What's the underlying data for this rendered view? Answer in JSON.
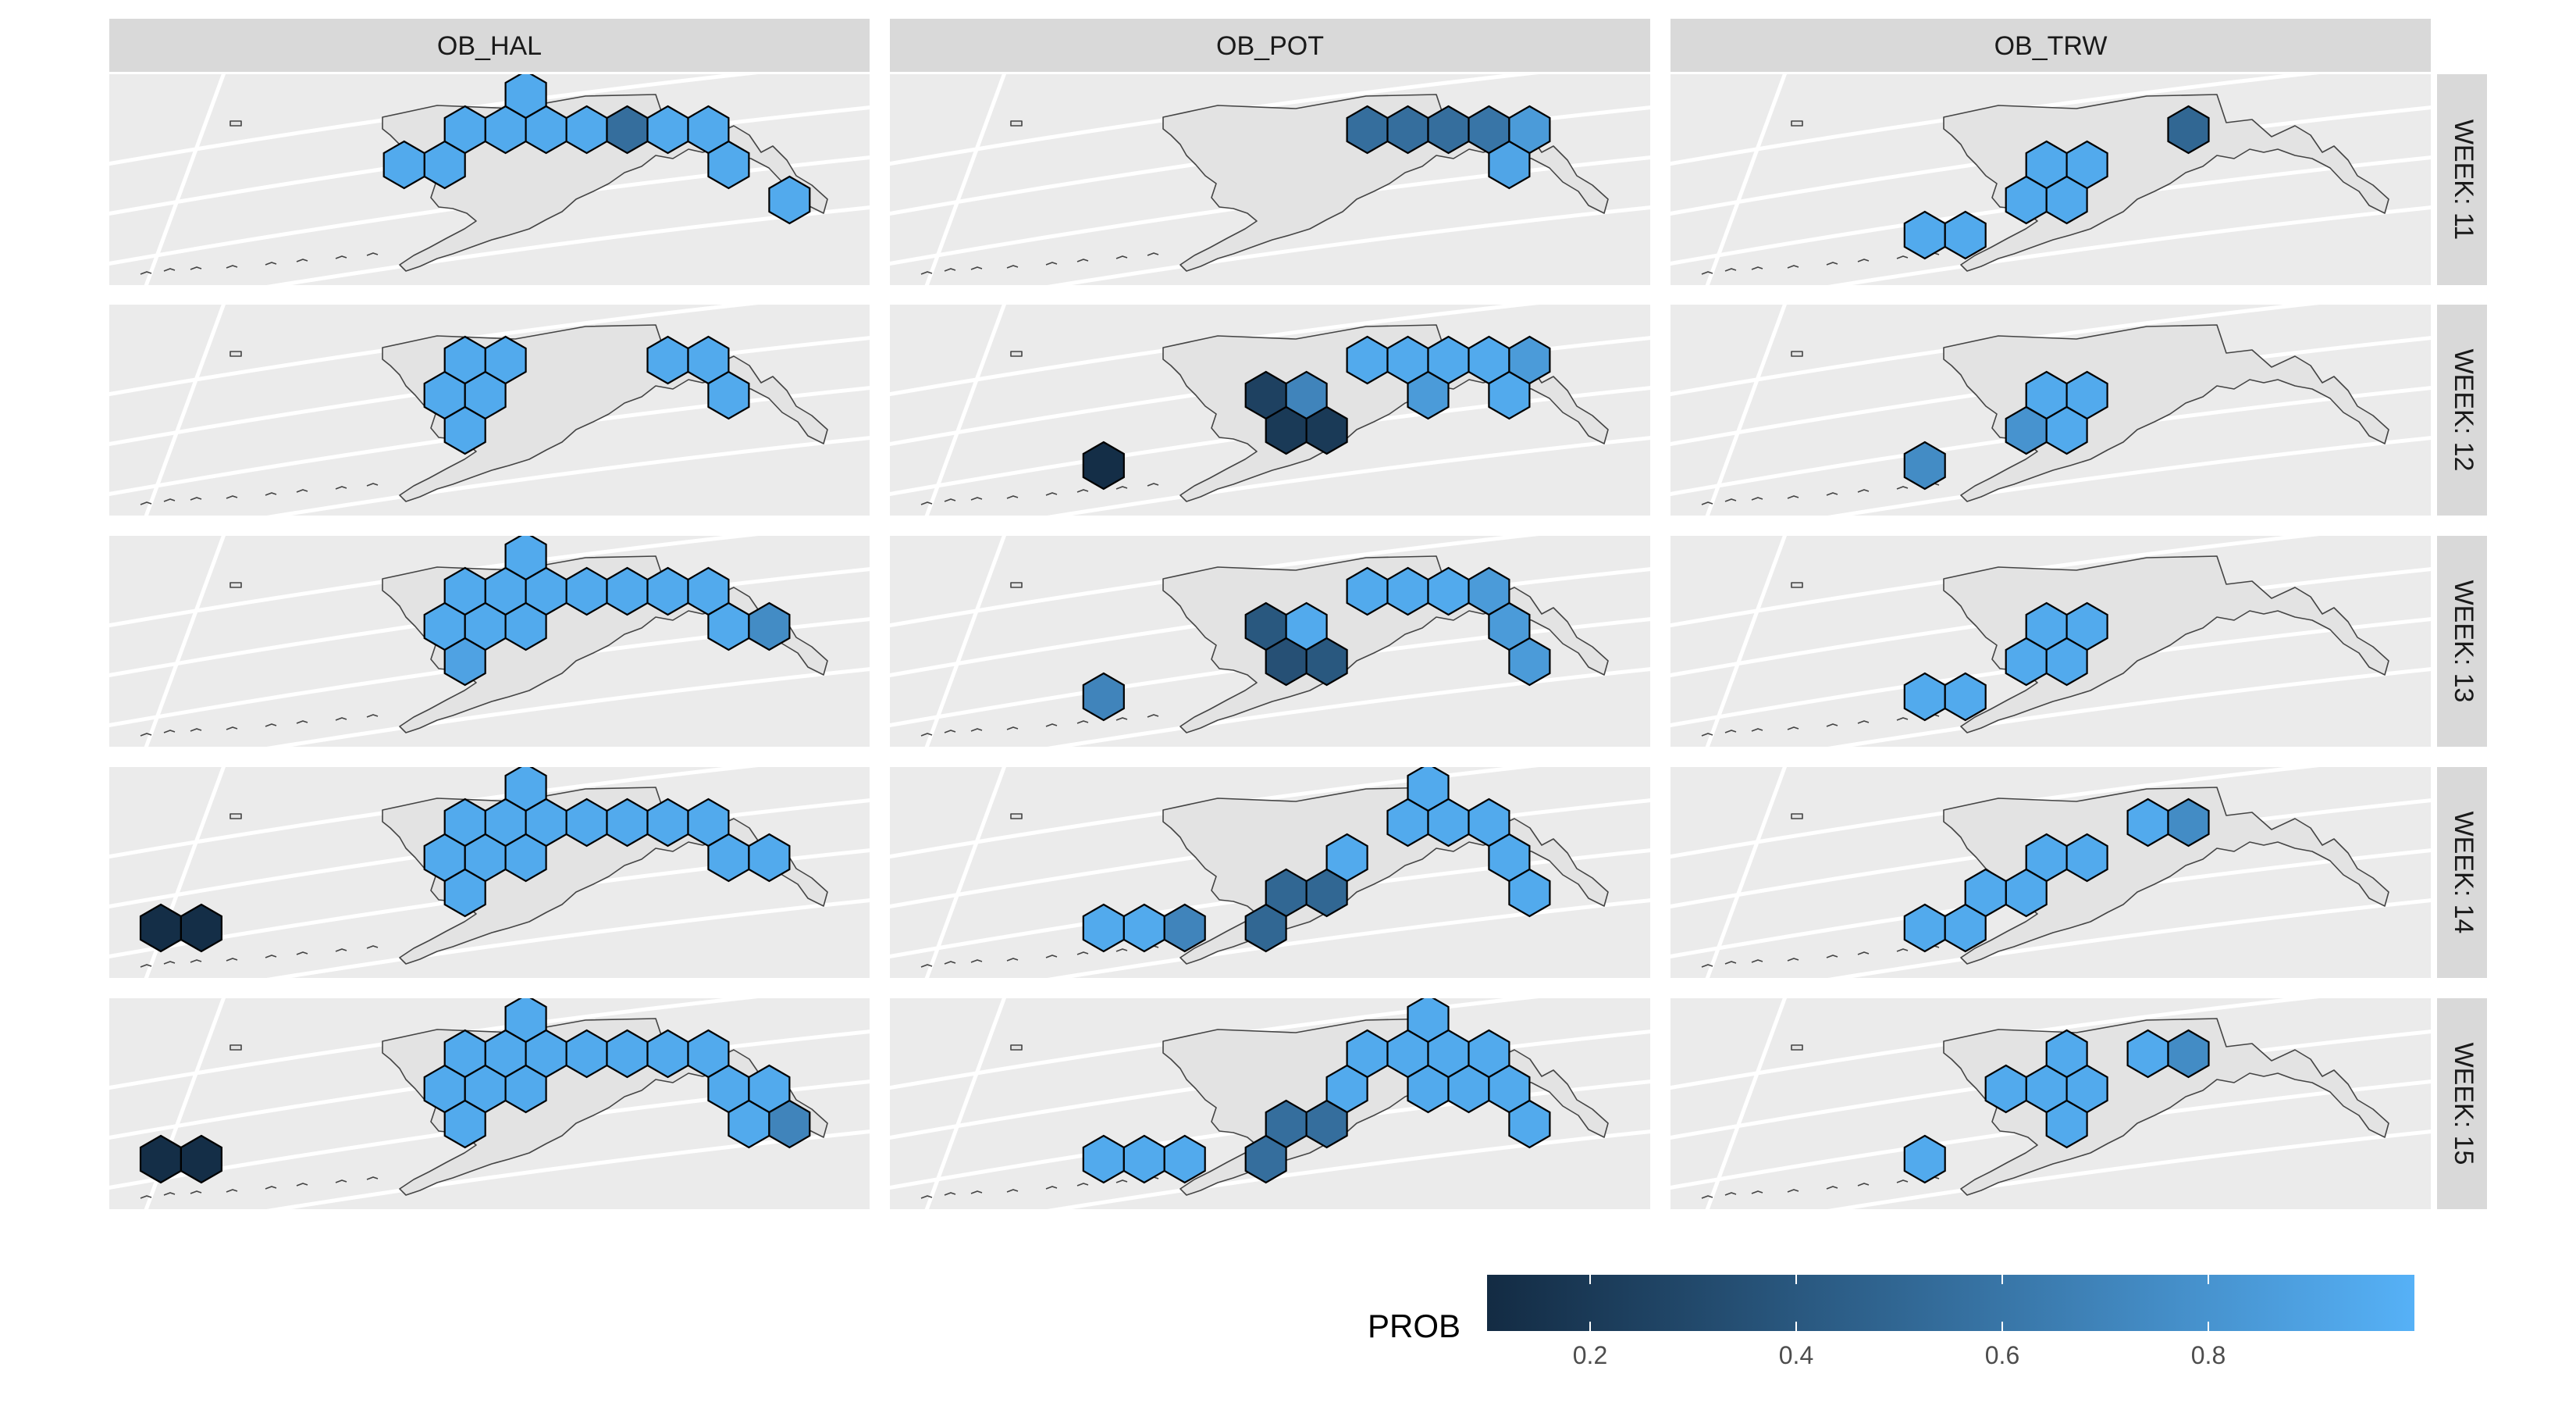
{
  "chart_data": {
    "type": "heatmap",
    "description_kind": "faceted hexbin maps",
    "facet_columns": [
      "OB_HAL",
      "OB_POT",
      "OB_TRW"
    ],
    "facet_rows": [
      "WEEK: 11",
      "WEEK: 12",
      "WEEK: 13",
      "WEEK: 14",
      "WEEK: 15"
    ],
    "hex_grid": {
      "cols": 16,
      "rows": 5,
      "note": "cells addressed as [col,row] on a horizontal hex grid covering the Gulf of Alaska / Aleutians"
    },
    "panels": [
      {
        "col": "OB_HAL",
        "row": "WEEK: 11",
        "cells": [
          [
            9,
            1,
            0.95
          ],
          [
            10,
            0,
            0.95
          ],
          [
            10,
            1,
            0.95
          ],
          [
            8,
            1,
            0.95
          ],
          [
            8,
            2,
            0.95
          ],
          [
            11,
            1,
            0.95
          ],
          [
            12,
            1,
            0.55
          ],
          [
            13,
            1,
            0.95
          ],
          [
            14,
            1,
            0.95
          ],
          [
            15,
            2,
            0.95
          ],
          [
            16,
            3,
            0.95
          ],
          [
            7,
            2,
            0.95
          ]
        ]
      },
      {
        "col": "OB_HAL",
        "row": "WEEK: 12",
        "cells": [
          [
            8,
            2,
            0.95
          ],
          [
            9,
            2,
            0.95
          ],
          [
            9,
            1,
            0.95
          ],
          [
            8,
            1,
            0.95
          ],
          [
            8,
            3,
            0.95
          ],
          [
            13,
            1,
            0.95
          ],
          [
            14,
            1,
            0.95
          ],
          [
            15,
            2,
            0.95
          ]
        ]
      },
      {
        "col": "OB_HAL",
        "row": "WEEK: 13",
        "cells": [
          [
            10,
            0,
            0.95
          ],
          [
            9,
            1,
            0.95
          ],
          [
            10,
            1,
            0.95
          ],
          [
            8,
            1,
            0.95
          ],
          [
            11,
            1,
            0.95
          ],
          [
            12,
            1,
            0.95
          ],
          [
            13,
            1,
            0.95
          ],
          [
            14,
            1,
            0.95
          ],
          [
            8,
            2,
            0.95
          ],
          [
            9,
            2,
            0.95
          ],
          [
            10,
            2,
            0.95
          ],
          [
            8,
            3,
            0.9
          ],
          [
            15,
            2,
            0.95
          ],
          [
            16,
            2,
            0.75
          ]
        ]
      },
      {
        "col": "OB_HAL",
        "row": "WEEK: 14",
        "cells": [
          [
            10,
            0,
            0.95
          ],
          [
            9,
            1,
            0.95
          ],
          [
            10,
            1,
            0.95
          ],
          [
            8,
            1,
            0.95
          ],
          [
            11,
            1,
            0.95
          ],
          [
            12,
            1,
            0.95
          ],
          [
            13,
            1,
            0.95
          ],
          [
            14,
            1,
            0.95
          ],
          [
            8,
            2,
            0.95
          ],
          [
            9,
            2,
            0.95
          ],
          [
            10,
            2,
            0.95
          ],
          [
            8,
            3,
            0.95
          ],
          [
            15,
            2,
            0.95
          ],
          [
            16,
            2,
            0.95
          ],
          [
            1,
            4,
            0.12
          ],
          [
            2,
            4,
            0.12
          ]
        ]
      },
      {
        "col": "OB_HAL",
        "row": "WEEK: 15",
        "cells": [
          [
            10,
            0,
            0.95
          ],
          [
            9,
            1,
            0.95
          ],
          [
            10,
            1,
            0.95
          ],
          [
            8,
            1,
            0.95
          ],
          [
            11,
            1,
            0.95
          ],
          [
            12,
            1,
            0.95
          ],
          [
            13,
            1,
            0.95
          ],
          [
            14,
            1,
            0.95
          ],
          [
            8,
            2,
            0.95
          ],
          [
            9,
            2,
            0.95
          ],
          [
            10,
            2,
            0.95
          ],
          [
            8,
            3,
            0.95
          ],
          [
            15,
            2,
            0.95
          ],
          [
            16,
            2,
            0.95
          ],
          [
            15,
            3,
            0.95
          ],
          [
            16,
            3,
            0.7
          ],
          [
            1,
            4,
            0.12
          ],
          [
            2,
            4,
            0.12
          ]
        ]
      },
      {
        "col": "OB_POT",
        "row": "WEEK: 11",
        "cells": [
          [
            11,
            1,
            0.55
          ],
          [
            12,
            1,
            0.55
          ],
          [
            13,
            1,
            0.55
          ],
          [
            14,
            1,
            0.6
          ],
          [
            15,
            1,
            0.85
          ],
          [
            15,
            2,
            0.92
          ]
        ]
      },
      {
        "col": "OB_POT",
        "row": "WEEK: 12",
        "cells": [
          [
            11,
            1,
            0.95
          ],
          [
            12,
            1,
            0.95
          ],
          [
            13,
            1,
            0.95
          ],
          [
            14,
            1,
            0.95
          ],
          [
            15,
            1,
            0.85
          ],
          [
            9,
            2,
            0.25
          ],
          [
            10,
            2,
            0.7
          ],
          [
            13,
            2,
            0.85
          ],
          [
            15,
            2,
            0.95
          ],
          [
            9,
            3,
            0.2
          ],
          [
            10,
            3,
            0.2
          ],
          [
            5,
            4,
            0.12
          ]
        ]
      },
      {
        "col": "OB_POT",
        "row": "WEEK: 13",
        "cells": [
          [
            11,
            1,
            0.95
          ],
          [
            12,
            1,
            0.95
          ],
          [
            13,
            1,
            0.95
          ],
          [
            14,
            1,
            0.85
          ],
          [
            9,
            2,
            0.4
          ],
          [
            10,
            2,
            0.95
          ],
          [
            15,
            2,
            0.85
          ],
          [
            9,
            3,
            0.35
          ],
          [
            10,
            3,
            0.4
          ],
          [
            15,
            3,
            0.85
          ],
          [
            5,
            4,
            0.7
          ]
        ]
      },
      {
        "col": "OB_POT",
        "row": "WEEK: 14",
        "cells": [
          [
            13,
            0,
            0.95
          ],
          [
            12,
            1,
            0.95
          ],
          [
            13,
            1,
            0.95
          ],
          [
            14,
            1,
            0.95
          ],
          [
            11,
            2,
            0.95
          ],
          [
            9,
            3,
            0.5
          ],
          [
            10,
            3,
            0.5
          ],
          [
            9,
            4,
            0.5
          ],
          [
            15,
            2,
            0.95
          ],
          [
            15,
            3,
            0.95
          ],
          [
            5,
            4,
            0.95
          ],
          [
            6,
            4,
            0.95
          ],
          [
            7,
            4,
            0.7
          ]
        ]
      },
      {
        "col": "OB_POT",
        "row": "WEEK: 15",
        "cells": [
          [
            13,
            0,
            0.95
          ],
          [
            11,
            1,
            0.95
          ],
          [
            12,
            1,
            0.95
          ],
          [
            13,
            1,
            0.95
          ],
          [
            14,
            1,
            0.95
          ],
          [
            11,
            2,
            0.95
          ],
          [
            13,
            2,
            0.95
          ],
          [
            14,
            2,
            0.95
          ],
          [
            15,
            2,
            0.95
          ],
          [
            15,
            3,
            0.95
          ],
          [
            9,
            3,
            0.55
          ],
          [
            10,
            3,
            0.55
          ],
          [
            9,
            4,
            0.55
          ],
          [
            5,
            4,
            0.95
          ],
          [
            6,
            4,
            0.95
          ],
          [
            7,
            4,
            0.95
          ]
        ]
      },
      {
        "col": "OB_TRW",
        "row": "WEEK: 11",
        "cells": [
          [
            12,
            1,
            0.5
          ],
          [
            9,
            2,
            0.95
          ],
          [
            10,
            2,
            0.95
          ],
          [
            8,
            3,
            0.95
          ],
          [
            9,
            3,
            0.95
          ],
          [
            6,
            4,
            0.95
          ],
          [
            7,
            4,
            0.95
          ]
        ]
      },
      {
        "col": "OB_TRW",
        "row": "WEEK: 12",
        "cells": [
          [
            9,
            2,
            0.95
          ],
          [
            10,
            2,
            0.95
          ],
          [
            8,
            3,
            0.8
          ],
          [
            9,
            3,
            0.95
          ],
          [
            6,
            4,
            0.75
          ]
        ]
      },
      {
        "col": "OB_TRW",
        "row": "WEEK: 13",
        "cells": [
          [
            9,
            2,
            0.95
          ],
          [
            10,
            2,
            0.95
          ],
          [
            8,
            3,
            0.95
          ],
          [
            9,
            3,
            0.95
          ],
          [
            6,
            4,
            0.95
          ],
          [
            7,
            4,
            0.95
          ]
        ]
      },
      {
        "col": "OB_TRW",
        "row": "WEEK: 14",
        "cells": [
          [
            11,
            1,
            0.95
          ],
          [
            12,
            1,
            0.75
          ],
          [
            9,
            2,
            0.95
          ],
          [
            10,
            2,
            0.95
          ],
          [
            8,
            3,
            0.95
          ],
          [
            7,
            3,
            0.95
          ],
          [
            6,
            4,
            0.95
          ],
          [
            7,
            4,
            0.95
          ]
        ]
      },
      {
        "col": "OB_TRW",
        "row": "WEEK: 15",
        "cells": [
          [
            11,
            1,
            0.95
          ],
          [
            12,
            1,
            0.75
          ],
          [
            9,
            2,
            0.95
          ],
          [
            10,
            2,
            0.95
          ],
          [
            9,
            1,
            0.95
          ],
          [
            8,
            2,
            0.95
          ],
          [
            9,
            3,
            0.95
          ],
          [
            6,
            4,
            0.95
          ]
        ]
      }
    ],
    "legend": {
      "title": "PROB",
      "position": "bottom-right",
      "scale": "continuous",
      "low_color": "#132B43",
      "high_color": "#56B1F7",
      "domain": [
        0.1,
        1.0
      ],
      "ticks": [
        0.2,
        0.4,
        0.6,
        0.8
      ],
      "tick_labels": [
        "0.2",
        "0.4",
        "0.6",
        "0.8"
      ]
    },
    "colors": {
      "panel_background": "#EBEBEB",
      "strip_background": "#D9D9D9",
      "graticule": "#FFFFFF",
      "land": "#E3E3E3"
    }
  }
}
